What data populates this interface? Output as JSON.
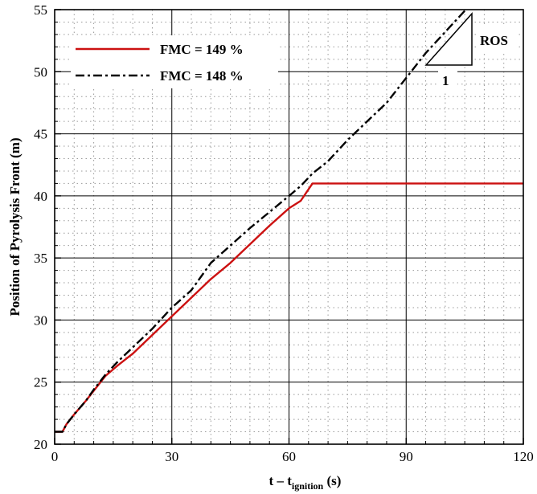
{
  "chart_data": {
    "type": "line",
    "xlabel_main": "t – t",
    "xlabel_sub": "ignition",
    "xlabel_unit": " (s)",
    "ylabel": "Position of Pyrolysis Front (m)",
    "xlim": [
      0,
      120
    ],
    "ylim": [
      20,
      55
    ],
    "xticks": [
      0,
      30,
      60,
      90,
      120
    ],
    "yticks": [
      20,
      25,
      30,
      35,
      40,
      45,
      50,
      55
    ],
    "xtick_labels": [
      "0",
      "30",
      "60",
      "90",
      "120"
    ],
    "ytick_labels": [
      "20",
      "25",
      "30",
      "35",
      "40",
      "45",
      "50",
      "55"
    ],
    "grid": true,
    "legend_position": "top-left",
    "series": [
      {
        "name": "FMC = 149 %",
        "color": "#cc1111",
        "style": "solid",
        "x": [
          0,
          2,
          3,
          5,
          8,
          10,
          13,
          16,
          20,
          25,
          30,
          35,
          40,
          45,
          50,
          55,
          60,
          63,
          66,
          70,
          80,
          90,
          100,
          110,
          120
        ],
        "y": [
          21.0,
          21.0,
          21.6,
          22.4,
          23.5,
          24.3,
          25.5,
          26.3,
          27.3,
          28.8,
          30.3,
          31.8,
          33.3,
          34.6,
          36.1,
          37.6,
          39.0,
          39.6,
          41.0,
          41.0,
          41.0,
          41.0,
          41.0,
          41.0,
          41.0
        ]
      },
      {
        "name": "FMC = 148 %",
        "color": "#000000",
        "style": "dashdot",
        "x": [
          0,
          2,
          3,
          5,
          8,
          10,
          13,
          16,
          20,
          25,
          30,
          35,
          40,
          45,
          50,
          55,
          60,
          63,
          66,
          70,
          75,
          80,
          85,
          90,
          95,
          100,
          105
        ],
        "y": [
          21.0,
          21.0,
          21.6,
          22.4,
          23.5,
          24.4,
          25.6,
          26.6,
          27.8,
          29.3,
          31.0,
          32.4,
          34.6,
          36.0,
          37.4,
          38.7,
          40.0,
          40.8,
          41.8,
          42.8,
          44.5,
          46.0,
          47.5,
          49.5,
          51.5,
          53.2,
          54.9
        ]
      }
    ],
    "annotation": {
      "rate_label": "ROS",
      "run_label": "1"
    }
  }
}
